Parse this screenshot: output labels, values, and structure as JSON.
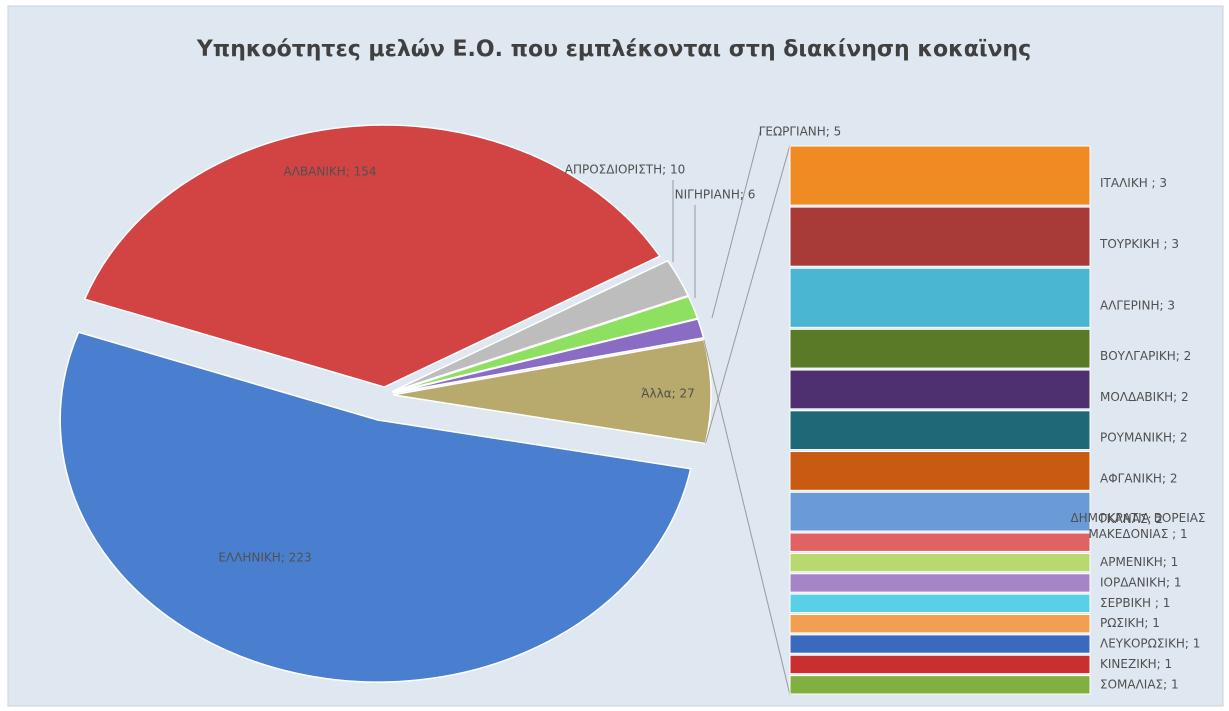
{
  "chart_data": {
    "type": "pie-of-bar",
    "title": "Υπηκοότητες μελών Ε.Ο. που εμπλέκονται στη διακίνηση κοκαϊνης",
    "pie": {
      "values": [
        223,
        154,
        10,
        6,
        5,
        27
      ],
      "value_labels": [
        "ΕΛΛΗΝΙΚΗ; 223",
        "ΑΛΒΑΝΙΚΗ; 154",
        "ΑΠΡΟΣΔΙΟΡΙΣΤΗ; 10",
        "ΝΙΓΗΡΙΑΝΗ; 6",
        "ΓΕΩΡΓΙΑΝΗ; 5",
        "Άλλα; 27"
      ],
      "colors": [
        "#4a7fd0",
        "#d24444",
        "#bdbdbd",
        "#8ee060",
        "#8a6cc4",
        "#b8a96c"
      ]
    },
    "bar": {
      "values": [
        3,
        3,
        3,
        2,
        2,
        2,
        2,
        2,
        1,
        1,
        1,
        1,
        1,
        1,
        1,
        1
      ],
      "value_labels": [
        "ΙΤΑΛΙΚΗ ; 3",
        "ΤΟΥΡΚΙΚΗ ; 3",
        "ΑΛΓΕΡΙΝΗ; 3",
        "ΒΟΥΛΓΑΡΙΚΗ; 2",
        "ΜΟΛΔΑΒΙΚΗ; 2",
        "ΡΟΥΜΑΝΙΚΗ; 2",
        "ΑΦΓΑΝΙΚΗ; 2",
        "ΓΚΑΝΑΣ; 2",
        "ΔΗΜΟΚΡΑΤΙΑ ΒΟΡΕΙΑΣ ΜΑΚΕΔΟΝΙΑΣ ; 1",
        "ΑΡΜΕΝΙΚΗ; 1",
        "ΙΟΡΔΑΝΙΚΗ; 1",
        "ΣΕΡΒΙΚΗ ; 1",
        "ΡΩΣΙΚΗ; 1",
        "ΛΕΥΚΟΡΩΣΙΚΗ; 1",
        "ΚΙΝΕΖΙΚΗ; 1",
        "ΣΟΜΑΛΙΑΣ; 1"
      ],
      "colors": [
        "#f08a22",
        "#a83a38",
        "#4ab6d2",
        "#5a7a28",
        "#4e2f70",
        "#1f6878",
        "#c85a12",
        "#6a9ad8",
        "#e06262",
        "#b8d870",
        "#a585c8",
        "#5ad0e8",
        "#f0a050",
        "#3a6ac0",
        "#c83030",
        "#80b040"
      ]
    }
  }
}
